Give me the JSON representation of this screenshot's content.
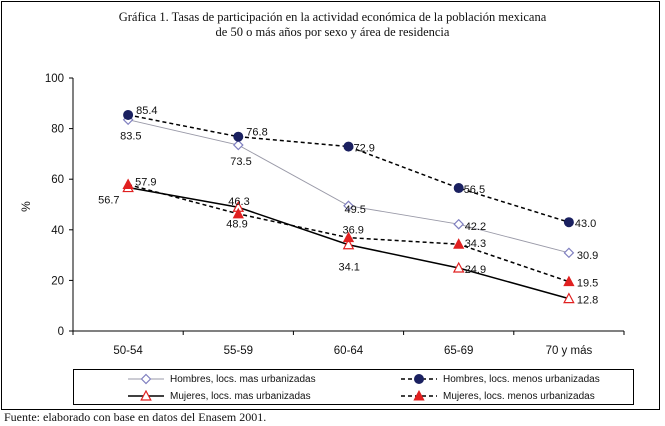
{
  "title": {
    "line1": "Gráfica 1. Tasas de participación en la actividad económica de la población mexicana",
    "line2": "de 50 o más años por sexo y área de residencia"
  },
  "source": "Fuente: elaborado con base en datos del Enasem 2001.",
  "chart_data": {
    "type": "line",
    "title": "Gráfica 1. Tasas de participación en la actividad económica de la población mexicana de 50 o más años por sexo y área de residencia",
    "xlabel": "",
    "ylabel": "%",
    "ylim": [
      0,
      100
    ],
    "yticks": [
      "0",
      "20",
      "40",
      "60",
      "80",
      "100"
    ],
    "categories": [
      "50-54",
      "55-59",
      "60-64",
      "65-69",
      "70 y más"
    ],
    "legend_position": "bottom",
    "series": [
      {
        "name": "Hombres, locs. mas urbanizadas",
        "values": [
          83.5,
          73.5,
          49.5,
          42.2,
          30.9
        ],
        "labels": [
          "83.5",
          "73.5",
          "49.5",
          "42.2",
          "30.9"
        ],
        "color": "#8080c0",
        "marker": "open-diamond",
        "line": "solid-thin"
      },
      {
        "name": "Hombres, locs. menos urbanizadas",
        "values": [
          85.4,
          76.8,
          72.9,
          56.5,
          43.0
        ],
        "labels": [
          "85.4",
          "76.8",
          "72.9",
          "56.5",
          "43.0"
        ],
        "color": "#1a2060",
        "marker": "filled-circle",
        "line": "dashed"
      },
      {
        "name": "Mujeres, locs. mas urbanizadas",
        "values": [
          56.7,
          48.9,
          34.1,
          24.9,
          12.8
        ],
        "labels": [
          "56.7",
          "48.9",
          "34.1",
          "24.9",
          "12.8"
        ],
        "color": "#e02020",
        "marker": "open-triangle",
        "line": "solid"
      },
      {
        "name": "Mujeres, locs. menos urbanizadas",
        "values": [
          57.9,
          46.3,
          36.9,
          34.3,
          19.5
        ],
        "labels": [
          "57.9",
          "46.3",
          "36.9",
          "34.3",
          "19.5"
        ],
        "color": "#e02020",
        "marker": "filled-triangle",
        "line": "dashed"
      }
    ]
  }
}
